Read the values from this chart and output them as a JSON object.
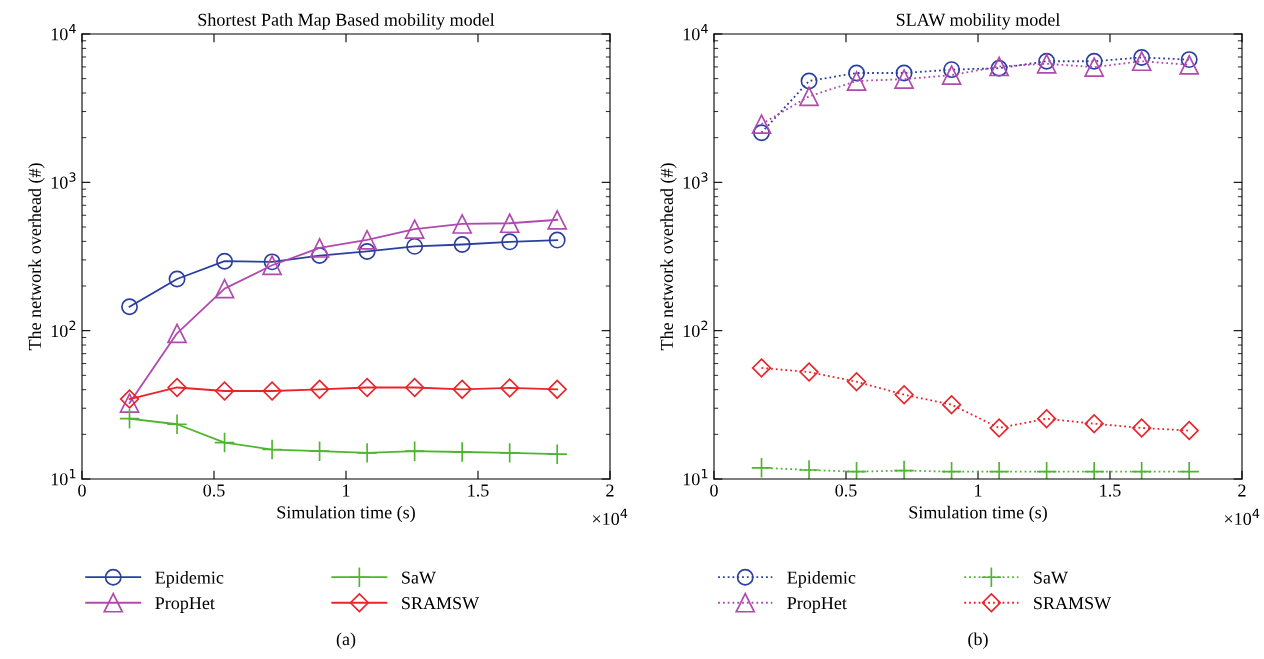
{
  "chart_data": [
    {
      "type": "line",
      "title": "Shortest Path Map Based mobility model",
      "xlabel": "Simulation time (s)",
      "ylabel": "The network overhead (#)",
      "log": "y",
      "line_style": "solid",
      "grid": false,
      "legend": "bottom",
      "x": [
        0.18,
        0.36,
        0.54,
        0.72,
        0.9,
        1.08,
        1.26,
        1.44,
        1.62,
        1.8
      ],
      "xlim": [
        0,
        2
      ],
      "xticks": [
        0,
        0.5,
        1,
        1.5,
        2
      ],
      "ylim": [
        10,
        10000
      ],
      "yticks": [
        {
          "value": 10,
          "label": "10$^{1}$"
        },
        {
          "value": 100,
          "label": "10$^{2}$"
        },
        {
          "value": 1000,
          "label": "10$^{3}$"
        },
        {
          "value": 10000,
          "label": "10$^{4}$"
        }
      ],
      "series": [
        {
          "name": "Epidemic",
          "color": "#2b3fa0",
          "marker": "circle",
          "values": [
            145,
            223,
            294,
            291,
            321,
            342,
            370,
            381,
            397,
            408
          ]
        },
        {
          "name": "PropHet",
          "color": "#b04aae",
          "marker": "triangle",
          "values": [
            32.5,
            96,
            192,
            276,
            361,
            410,
            484,
            524,
            530,
            559
          ]
        },
        {
          "name": "SaW",
          "color": "#4fb52f",
          "marker": "cross",
          "values": [
            25.5,
            23.4,
            17.6,
            15.8,
            15.4,
            15.0,
            15.4,
            15.2,
            15.0,
            14.7
          ]
        },
        {
          "name": "SRAMSW",
          "color": "#e8252b",
          "marker": "diamond",
          "values": [
            34.6,
            41.4,
            39.2,
            39.2,
            40.2,
            41.4,
            41.4,
            40.2,
            41.1,
            40.2
          ]
        }
      ],
      "annotations": [
        "×10$^{4}$",
        "(a)"
      ]
    },
    {
      "type": "line",
      "title": "SLAW mobility model",
      "xlabel": "Simulation time (s)",
      "ylabel": "The network overhead (#)",
      "log": "y",
      "line_style": "dotted",
      "grid": false,
      "legend": "bottom",
      "x": [
        0.18,
        0.36,
        0.54,
        0.72,
        0.9,
        1.08,
        1.26,
        1.44,
        1.62,
        1.8
      ],
      "xlim": [
        0,
        2
      ],
      "xticks": [
        0,
        0.5,
        1,
        1.5,
        2
      ],
      "ylim": [
        10,
        10000
      ],
      "yticks": [
        {
          "value": 10,
          "label": "10$^{1}$"
        },
        {
          "value": 100,
          "label": "10$^{2}$"
        },
        {
          "value": 1000,
          "label": "10$^{3}$"
        },
        {
          "value": 10000,
          "label": "10$^{4}$"
        }
      ],
      "series": [
        {
          "name": "Epidemic",
          "color": "#2b3fa0",
          "marker": "circle",
          "values": [
            2160,
            4820,
            5460,
            5460,
            5750,
            5880,
            6550,
            6550,
            6950,
            6720
          ]
        },
        {
          "name": "PropHet",
          "color": "#b04aae",
          "marker": "triangle",
          "values": [
            2470,
            3800,
            4820,
            4960,
            5280,
            6040,
            6300,
            5980,
            6550,
            6200
          ]
        },
        {
          "name": "SaW",
          "color": "#4fb52f",
          "marker": "cross",
          "values": [
            11.9,
            11.5,
            11.2,
            11.4,
            11.2,
            11.2,
            11.2,
            11.2,
            11.2,
            11.2
          ]
        },
        {
          "name": "SRAMSW",
          "color": "#e8252b",
          "marker": "diamond",
          "values": [
            56.1,
            52.6,
            45.3,
            37.0,
            31.7,
            22.1,
            25.5,
            23.6,
            22.1,
            21.2
          ]
        }
      ],
      "annotations": [
        "×10$^{4}$",
        "(b)"
      ]
    }
  ]
}
